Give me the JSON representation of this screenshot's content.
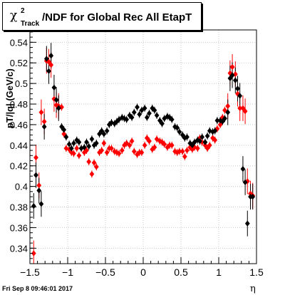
{
  "title": {
    "symbol": "χ",
    "superscript": "2",
    "subscript": "Track",
    "text": "/NDF for Global Rec All EtapT"
  },
  "footer": "Fri Sep  8 09:46:01 2017",
  "chart_data": {
    "type": "scatter",
    "xlabel": "η",
    "ylabel": "pT/|q| (GeV/c)",
    "xlim": [
      -1.5,
      1.5
    ],
    "ylim": [
      0.325,
      0.552
    ],
    "xticks": [
      -1.5,
      -1,
      -0.5,
      0,
      0.5,
      1,
      1.5
    ],
    "xtick_labels": [
      "−1.5",
      "−1",
      "−0.5",
      "0",
      "0.5",
      "1",
      "1.5"
    ],
    "yticks": [
      0.34,
      0.36,
      0.38,
      0.4,
      0.42,
      0.44,
      0.46,
      0.48,
      0.5,
      0.52,
      0.54
    ],
    "ytick_labels": [
      "0.34",
      "0.36",
      "0.38",
      "0.4",
      "0.42",
      "0.44",
      "0.46",
      "0.48",
      "0.5",
      "0.52",
      "0.54"
    ],
    "grid": true,
    "colors": {
      "black_series": "#000000",
      "red_series": "#ff0000"
    },
    "series": [
      {
        "color": "#000000",
        "points": [
          [
            -1.45,
            0.381
          ],
          [
            -1.42,
            0.411
          ],
          [
            -1.38,
            0.396
          ],
          [
            -1.35,
            0.383
          ],
          [
            -1.31,
            0.458
          ],
          [
            -1.28,
            0.524
          ],
          [
            -1.25,
            0.512
          ],
          [
            -1.22,
            0.527
          ],
          [
            -1.18,
            0.496
          ],
          [
            -1.15,
            0.484
          ],
          [
            -1.12,
            0.476
          ],
          [
            -1.08,
            0.458
          ],
          [
            -1.05,
            0.455
          ],
          [
            -1.02,
            0.448
          ],
          [
            -0.98,
            0.441
          ],
          [
            -0.95,
            0.437
          ],
          [
            -0.92,
            0.442
          ],
          [
            -0.88,
            0.445
          ],
          [
            -0.85,
            0.443
          ],
          [
            -0.82,
            0.437
          ],
          [
            -0.78,
            0.438
          ],
          [
            -0.75,
            0.443
          ],
          [
            -0.72,
            0.439
          ],
          [
            -0.68,
            0.446
          ],
          [
            -0.65,
            0.44
          ],
          [
            -0.62,
            0.442
          ],
          [
            -0.58,
            0.451
          ],
          [
            -0.55,
            0.454
          ],
          [
            -0.52,
            0.451
          ],
          [
            -0.48,
            0.454
          ],
          [
            -0.45,
            0.46
          ],
          [
            -0.42,
            0.462
          ],
          [
            -0.38,
            0.461
          ],
          [
            -0.35,
            0.463
          ],
          [
            -0.32,
            0.465
          ],
          [
            -0.28,
            0.467
          ],
          [
            -0.25,
            0.466
          ],
          [
            -0.22,
            0.465
          ],
          [
            -0.18,
            0.469
          ],
          [
            -0.15,
            0.467
          ],
          [
            -0.12,
            0.472
          ],
          [
            -0.08,
            0.477
          ],
          [
            -0.05,
            0.47
          ],
          [
            -0.02,
            0.474
          ],
          [
            0.02,
            0.476
          ],
          [
            0.05,
            0.467
          ],
          [
            0.08,
            0.471
          ],
          [
            0.12,
            0.476
          ],
          [
            0.15,
            0.474
          ],
          [
            0.18,
            0.469
          ],
          [
            0.22,
            0.464
          ],
          [
            0.25,
            0.461
          ],
          [
            0.28,
            0.466
          ],
          [
            0.32,
            0.468
          ],
          [
            0.35,
            0.467
          ],
          [
            0.38,
            0.465
          ],
          [
            0.42,
            0.458
          ],
          [
            0.45,
            0.457
          ],
          [
            0.48,
            0.453
          ],
          [
            0.52,
            0.45
          ],
          [
            0.55,
            0.447
          ],
          [
            0.58,
            0.448
          ],
          [
            0.62,
            0.442
          ],
          [
            0.65,
            0.44
          ],
          [
            0.68,
            0.443
          ],
          [
            0.72,
            0.445
          ],
          [
            0.75,
            0.444
          ],
          [
            0.78,
            0.448
          ],
          [
            0.82,
            0.443
          ],
          [
            0.85,
            0.449
          ],
          [
            0.88,
            0.454
          ],
          [
            0.92,
            0.453
          ],
          [
            0.95,
            0.454
          ],
          [
            0.98,
            0.464
          ],
          [
            1.02,
            0.464
          ],
          [
            1.05,
            0.463
          ],
          [
            1.08,
            0.466
          ],
          [
            1.12,
            0.472
          ],
          [
            1.15,
            0.505
          ],
          [
            1.18,
            0.508
          ],
          [
            1.22,
            0.503
          ],
          [
            1.25,
            0.495
          ],
          [
            1.28,
            0.488
          ],
          [
            1.32,
            0.417
          ],
          [
            1.35,
            0.404
          ],
          [
            1.38,
            0.364
          ],
          [
            1.42,
            0.39
          ],
          [
            1.45,
            0.39
          ]
        ]
      },
      {
        "color": "#ff0000",
        "points": [
          [
            -1.45,
            0.335
          ],
          [
            -1.42,
            0.428
          ],
          [
            -1.38,
            0.401
          ],
          [
            -1.35,
            0.472
          ],
          [
            -1.31,
            0.463
          ],
          [
            -1.28,
            0.522
          ],
          [
            -1.25,
            0.521
          ],
          [
            -1.22,
            0.518
          ],
          [
            -1.18,
            0.485
          ],
          [
            -1.15,
            0.479
          ],
          [
            -1.12,
            0.478
          ],
          [
            -1.08,
            0.477
          ],
          [
            -1.05,
            0.451
          ],
          [
            -1.02,
            0.437
          ],
          [
            -0.98,
            0.436
          ],
          [
            -0.95,
            0.433
          ],
          [
            -0.92,
            0.432
          ],
          [
            -0.88,
            0.437
          ],
          [
            -0.85,
            0.43
          ],
          [
            -0.82,
            0.437
          ],
          [
            -0.78,
            0.433
          ],
          [
            -0.75,
            0.435
          ],
          [
            -0.72,
            0.424
          ],
          [
            -0.68,
            0.412
          ],
          [
            -0.65,
            0.423
          ],
          [
            -0.62,
            0.419
          ],
          [
            -0.58,
            0.433
          ],
          [
            -0.55,
            0.435
          ],
          [
            -0.52,
            0.442
          ],
          [
            -0.48,
            0.433
          ],
          [
            -0.45,
            0.437
          ],
          [
            -0.42,
            0.437
          ],
          [
            -0.38,
            0.434
          ],
          [
            -0.35,
            0.433
          ],
          [
            -0.32,
            0.432
          ],
          [
            -0.28,
            0.435
          ],
          [
            -0.25,
            0.44
          ],
          [
            -0.22,
            0.442
          ],
          [
            -0.18,
            0.44
          ],
          [
            -0.15,
            0.444
          ],
          [
            -0.12,
            0.434
          ],
          [
            -0.08,
            0.431
          ],
          [
            -0.05,
            0.433
          ],
          [
            -0.02,
            0.433
          ],
          [
            0.02,
            0.44
          ],
          [
            0.05,
            0.447
          ],
          [
            0.08,
            0.444
          ],
          [
            0.12,
            0.436
          ],
          [
            0.15,
            0.438
          ],
          [
            0.18,
            0.446
          ],
          [
            0.22,
            0.444
          ],
          [
            0.25,
            0.443
          ],
          [
            0.28,
            0.441
          ],
          [
            0.32,
            0.438
          ],
          [
            0.35,
            0.44
          ],
          [
            0.38,
            0.44
          ],
          [
            0.42,
            0.434
          ],
          [
            0.45,
            0.433
          ],
          [
            0.48,
            0.434
          ],
          [
            0.52,
            0.434
          ],
          [
            0.55,
            0.429
          ],
          [
            0.58,
            0.435
          ],
          [
            0.62,
            0.438
          ],
          [
            0.65,
            0.436
          ],
          [
            0.68,
            0.438
          ],
          [
            0.72,
            0.437
          ],
          [
            0.75,
            0.447
          ],
          [
            0.78,
            0.443
          ],
          [
            0.82,
            0.44
          ],
          [
            0.85,
            0.437
          ],
          [
            0.88,
            0.44
          ],
          [
            0.92,
            0.447
          ],
          [
            0.95,
            0.445
          ],
          [
            0.98,
            0.456
          ],
          [
            1.02,
            0.46
          ],
          [
            1.05,
            0.467
          ],
          [
            1.08,
            0.474
          ],
          [
            1.12,
            0.478
          ],
          [
            1.15,
            0.51
          ],
          [
            1.18,
            0.516
          ],
          [
            1.22,
            0.509
          ],
          [
            1.25,
            0.49
          ],
          [
            1.28,
            0.476
          ],
          [
            1.32,
            0.476
          ],
          [
            1.35,
            0.473
          ],
          [
            1.38,
            0.405
          ],
          [
            1.42,
            0.393
          ],
          [
            1.45,
            0.391
          ]
        ]
      }
    ]
  }
}
